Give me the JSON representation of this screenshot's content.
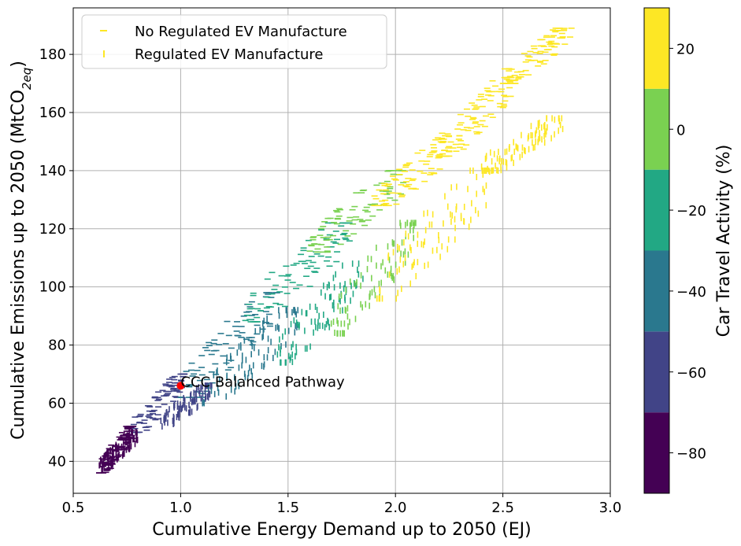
{
  "chart_data": {
    "type": "scatter",
    "xlabel": "Cumulative Energy Demand up to 2050 (EJ)",
    "ylabel_main": "Cumulative Emissions up to 2050 (MtCO",
    "ylabel_sub": "2eq",
    "ylabel_end": ")",
    "xlim": [
      0.5,
      3.0
    ],
    "ylim": [
      29,
      196
    ],
    "xticks": [
      0.5,
      1.0,
      1.5,
      2.0,
      2.5,
      3.0
    ],
    "xtick_labels": [
      "0.5",
      "1.0",
      "1.5",
      "2.0",
      "2.5",
      "3.0"
    ],
    "yticks": [
      40,
      60,
      80,
      100,
      120,
      140,
      160,
      180
    ],
    "ytick_labels": [
      "40",
      "60",
      "80",
      "100",
      "120",
      "140",
      "160",
      "180"
    ],
    "grid": true,
    "legend_position": "top-left",
    "legend": [
      {
        "label": "No Regulated EV Manufacture",
        "marker": "horizontal-dash",
        "color": "#fde725"
      },
      {
        "label": "Regulated EV Manufacture",
        "marker": "vertical-dash",
        "color": "#fde725"
      }
    ],
    "colorbar": {
      "label": "Car Travel Activity (%)",
      "range": [
        -90,
        30
      ],
      "ticks": [
        -80,
        -60,
        -40,
        -20,
        0,
        20
      ],
      "tick_labels": [
        "−80",
        "−60",
        "−40",
        "−20",
        "0",
        "20"
      ],
      "bins": [
        -90,
        -70,
        -50,
        -30,
        -10,
        10,
        30
      ],
      "colors": [
        "#440154",
        "#414487",
        "#2a788e",
        "#22a884",
        "#7ad151",
        "#fde725"
      ]
    },
    "highlight": {
      "x": 1.0,
      "y": 66,
      "color": "#ff0000",
      "label": "CCC Balanced Pathway"
    },
    "series": [
      {
        "name": "No Regulated EV Manufacture",
        "marker": "horizontal-dash",
        "clusters": [
          {
            "x": [
              0.62,
              0.78
            ],
            "y": [
              36,
              52
            ],
            "activity": -85
          },
          {
            "x": [
              0.78,
              1.02
            ],
            "y": [
              50,
              70
            ],
            "activity": -62
          },
          {
            "x": [
              1.0,
              1.45
            ],
            "y": [
              62,
              98
            ],
            "activity": -40
          },
          {
            "x": [
              1.3,
              1.8
            ],
            "y": [
              88,
              122
            ],
            "activity": -22
          },
          {
            "x": [
              1.6,
              2.05
            ],
            "y": [
              112,
              140
            ],
            "activity": -2
          },
          {
            "x": [
              1.9,
              2.3
            ],
            "y": [
              128,
              152
            ],
            "activity": 20
          },
          {
            "x": [
              2.2,
              2.55
            ],
            "y": [
              145,
              172
            ],
            "activity": 20
          },
          {
            "x": [
              2.5,
              2.82
            ],
            "y": [
              170,
              189
            ],
            "activity": 20
          }
        ]
      },
      {
        "name": "Regulated EV Manufacture",
        "marker": "vertical-dash",
        "clusters": [
          {
            "x": [
              0.62,
              0.8
            ],
            "y": [
              37,
              50
            ],
            "activity": -85
          },
          {
            "x": [
              0.9,
              1.15
            ],
            "y": [
              52,
              66
            ],
            "activity": -62
          },
          {
            "x": [
              1.1,
              1.55
            ],
            "y": [
              60,
              92
            ],
            "activity": -40
          },
          {
            "x": [
              1.45,
              1.85
            ],
            "y": [
              74,
              108
            ],
            "activity": -22
          },
          {
            "x": [
              1.7,
              2.1
            ],
            "y": [
              84,
              122
            ],
            "activity": -2
          },
          {
            "x": [
              1.9,
              2.45
            ],
            "y": [
              96,
              140
            ],
            "activity": 20
          },
          {
            "x": [
              2.4,
              2.78
            ],
            "y": [
              140,
              158
            ],
            "activity": 20
          }
        ]
      }
    ]
  }
}
